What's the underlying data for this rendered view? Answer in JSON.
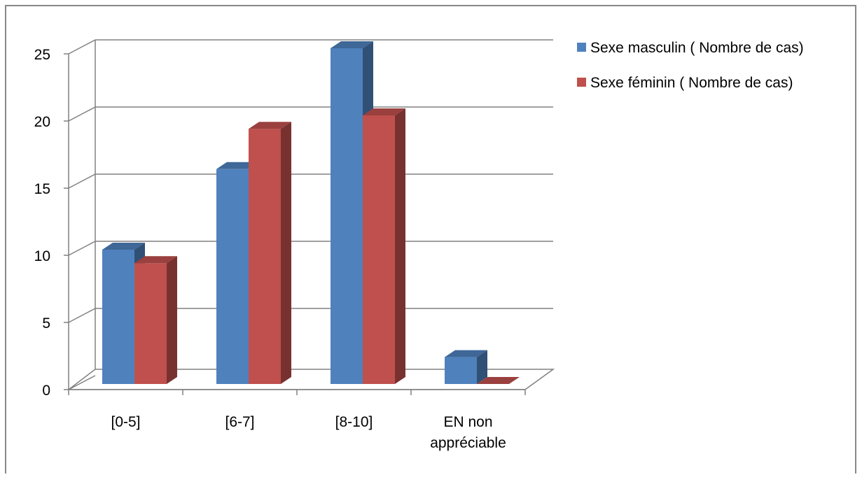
{
  "chart_data": {
    "type": "bar",
    "categories": [
      "[0-5]",
      "[6-7]",
      "[8-10]",
      "EN non appréciable"
    ],
    "category_lines": [
      [
        "[0-5]"
      ],
      [
        "[6-7]"
      ],
      [
        "[8-10]"
      ],
      [
        "EN non",
        "appréciable"
      ]
    ],
    "series": [
      {
        "name": "Sexe masculin ( Nombre de cas)",
        "values": [
          10,
          16,
          25,
          2
        ],
        "color": "#4f81bd"
      },
      {
        "name": "Sexe féminin ( Nombre de cas)",
        "values": [
          9,
          19,
          20,
          0
        ],
        "color": "#c0504d"
      }
    ],
    "ylim": [
      0,
      25
    ],
    "yticks": [
      "0",
      "5",
      "10",
      "15",
      "20",
      "25"
    ],
    "grid": true,
    "legend": "right",
    "three_d": true
  }
}
